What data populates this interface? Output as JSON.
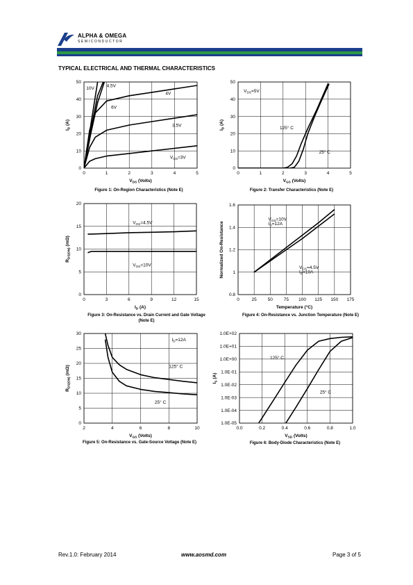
{
  "header": {
    "brand_line1": "ALPHA & OMEGA",
    "brand_line2": "SEMICONDUCTOR",
    "band_colors": [
      "#1b3f8b",
      "#2d9a46",
      "#1b3f8b"
    ]
  },
  "section_title": "TYPICAL ELECTRICAL AND THERMAL CHARACTERISTICS",
  "captions": {
    "fig1": "Figure 1: On-Region Characteristics (Note E)",
    "fig2": "Figure 2: Transfer Characteristics (Note E)",
    "fig3": "Figure 3: On-Resistance vs. Drain Current and Gate Voltage (Note E)",
    "fig4": "Figure 4: On-Resistance vs. Junction Temperature (Note E)",
    "fig5": "Figure 5: On-Resistance vs. Gate-Source Voltage (Note E)",
    "fig6": "Figure 6: Body-Diode Characteristics (Note E)"
  },
  "footer": {
    "left": "Rev.1.0: February 2014",
    "center": "www.aosmd.com",
    "right": "Page 3 of 5"
  },
  "chart_data": [
    {
      "id": "fig1",
      "type": "line",
      "xlabel": "V_DS (Volts)",
      "ylabel": "I_D (A)",
      "xlim": [
        0,
        5
      ],
      "ylim": [
        0,
        50
      ],
      "xticks": [
        0,
        1,
        2,
        3,
        4,
        5
      ],
      "yticks": [
        0,
        10,
        20,
        30,
        40,
        50
      ],
      "series": [
        {
          "name": "10V",
          "x": [
            0,
            0.3,
            0.6
          ],
          "y": [
            0,
            25,
            50
          ]
        },
        {
          "name": "4.5V",
          "x": [
            0,
            0.3,
            0.6,
            0.9
          ],
          "y": [
            0,
            20,
            38,
            50
          ]
        },
        {
          "name": "6V",
          "x": [
            0,
            0.3,
            0.6,
            0.85
          ],
          "y": [
            0,
            22,
            42,
            50
          ]
        },
        {
          "name": "4V",
          "x": [
            0,
            0.25,
            0.5,
            1,
            2,
            3,
            4,
            5
          ],
          "y": [
            0,
            22,
            32,
            39,
            42,
            44,
            46,
            48
          ]
        },
        {
          "name": "3.5V",
          "x": [
            0,
            0.25,
            0.5,
            1,
            2,
            3,
            4,
            5
          ],
          "y": [
            0,
            12,
            18,
            22,
            25,
            27,
            29,
            31
          ]
        },
        {
          "name": "V_GS=3V",
          "x": [
            0,
            0.25,
            0.5,
            1,
            2,
            3,
            4,
            5
          ],
          "y": [
            0,
            4,
            5.5,
            7,
            8.5,
            10,
            11.5,
            13
          ]
        }
      ],
      "annotations": [
        {
          "text": "10V",
          "x": 0.1,
          "y": 45.5
        },
        {
          "text": "4.5V",
          "x": 1.0,
          "y": 47
        },
        {
          "text": "4V",
          "x": 3.6,
          "y": 42.5
        },
        {
          "text": "6V",
          "x": 1.2,
          "y": 34.5
        },
        {
          "text": "3.5V",
          "x": 3.9,
          "y": 24
        },
        {
          "text": "V_GS=3V",
          "x": 3.8,
          "y": 5.5
        }
      ]
    },
    {
      "id": "fig2",
      "type": "line",
      "xlabel": "V_GS (Volts)",
      "ylabel": "I_D (A)",
      "xlim": [
        0,
        5
      ],
      "ylim": [
        0,
        50
      ],
      "xticks": [
        0,
        1,
        2,
        3,
        4,
        5
      ],
      "yticks": [
        0,
        10,
        20,
        30,
        40,
        50
      ],
      "series": [
        {
          "name": "125°C",
          "x": [
            0,
            2.0,
            2.2,
            2.4,
            2.6,
            2.8,
            3.1,
            3.5,
            4.0
          ],
          "y": [
            0,
            0,
            0.5,
            2.5,
            7,
            14,
            23,
            34,
            49
          ]
        },
        {
          "name": "25°C",
          "x": [
            0,
            2.3,
            2.5,
            2.7,
            2.9,
            3.1,
            3.4,
            3.7,
            4.05
          ],
          "y": [
            0,
            0,
            0.5,
            4,
            11,
            20,
            30,
            39,
            49
          ]
        }
      ],
      "annotations": [
        {
          "text": "V_DS=5V",
          "x": 0.25,
          "y": 44
        },
        {
          "text": "125° C",
          "x": 1.85,
          "y": 22.5
        },
        {
          "text": "25° C",
          "x": 3.6,
          "y": 8.5
        }
      ]
    },
    {
      "id": "fig3",
      "type": "line",
      "xlabel": "I_D (A)",
      "ylabel": "R_DS(ON) (mΩ)",
      "xlim": [
        0,
        15
      ],
      "ylim": [
        0,
        20
      ],
      "xticks": [
        0,
        3,
        6,
        9,
        12,
        15
      ],
      "yticks": [
        0,
        5,
        10,
        15,
        20
      ],
      "series": [
        {
          "name": "V_GS=4.5V",
          "x": [
            0.5,
            1,
            3,
            6,
            9,
            12,
            15
          ],
          "y": [
            13.3,
            13.3,
            13.4,
            13.6,
            13.7,
            13.8,
            14.0
          ]
        },
        {
          "name": "V_GS=10V",
          "x": [
            0.5,
            1,
            3,
            6,
            9,
            12,
            15
          ],
          "y": [
            9.2,
            9.5,
            9.5,
            9.5,
            9.5,
            9.5,
            9.5
          ]
        }
      ],
      "annotations": [
        {
          "text": "V_GS=4.5V",
          "x": 6.5,
          "y": 15.5
        },
        {
          "text": "V_GS=10V",
          "x": 6.5,
          "y": 6.2
        }
      ]
    },
    {
      "id": "fig4",
      "type": "line",
      "xlabel": "Temperature (°C)",
      "ylabel": "Normalized On-Resistance",
      "xlim": [
        0,
        175
      ],
      "ylim": [
        0.8,
        1.6
      ],
      "xticks": [
        0,
        25,
        50,
        75,
        100,
        125,
        150,
        175
      ],
      "yticks": [
        0.8,
        1.0,
        1.2,
        1.4,
        1.6
      ],
      "series": [
        {
          "name": "V_GS=10V, I_D=12A",
          "x": [
            25,
            50,
            75,
            100,
            125,
            150
          ],
          "y": [
            1.0,
            1.11,
            1.22,
            1.33,
            1.44,
            1.56
          ]
        },
        {
          "name": "V_GS=4.5V, I_D=10A",
          "x": [
            25,
            50,
            75,
            100,
            125,
            150
          ],
          "y": [
            1.0,
            1.1,
            1.2,
            1.3,
            1.41,
            1.52
          ]
        }
      ],
      "annotations": [
        {
          "text": "V_GS=10V",
          "x": 47,
          "y": 1.46
        },
        {
          "text": "I_D=12A",
          "x": 47,
          "y": 1.42
        },
        {
          "text": "V_GS=4.5V",
          "x": 95,
          "y": 1.03
        },
        {
          "text": "I_D=10A",
          "x": 95,
          "y": 0.99
        }
      ]
    },
    {
      "id": "fig5",
      "type": "line",
      "xlabel": "V_GS (Volts)",
      "ylabel": "R_DS(ON) (mΩ)",
      "xlim": [
        2,
        10
      ],
      "ylim": [
        0,
        30
      ],
      "xticks": [
        2,
        4,
        6,
        8,
        10
      ],
      "yticks": [
        0,
        5,
        10,
        15,
        20,
        25,
        30
      ],
      "series": [
        {
          "name": "125°C",
          "x": [
            3.5,
            3.7,
            4,
            4.5,
            5,
            6,
            7,
            8,
            9,
            10
          ],
          "y": [
            30,
            26,
            22,
            19.5,
            18,
            16.2,
            15.2,
            14.6,
            14.0,
            13.5
          ]
        },
        {
          "name": "25°C",
          "x": [
            3.5,
            3.7,
            4,
            4.5,
            5,
            6,
            7,
            8,
            9,
            10
          ],
          "y": [
            28,
            22,
            17,
            14,
            12.5,
            11.3,
            10.6,
            10.2,
            9.8,
            9.5
          ]
        }
      ],
      "annotations": [
        {
          "text": "I_D=12A",
          "x": 8.2,
          "y": 27.5
        },
        {
          "text": "125° C",
          "x": 8.0,
          "y": 18.5
        },
        {
          "text": "25° C",
          "x": 7.0,
          "y": 6.5
        }
      ]
    },
    {
      "id": "fig6",
      "type": "line",
      "yscale": "log",
      "xlabel": "V_SD (Volts)",
      "ylabel": "I_S (A)",
      "xlim": [
        0,
        1.0
      ],
      "ylim": [
        1e-05,
        100
      ],
      "xticks": [
        0.0,
        0.2,
        0.4,
        0.6,
        0.8,
        1.0
      ],
      "xtick_labels": [
        "0.0",
        "0.2",
        "0.4",
        "0.6",
        "0.8",
        "1.0"
      ],
      "yticks": [
        1e-05,
        0.0001,
        0.001,
        0.01,
        0.1,
        1,
        10,
        100
      ],
      "ytick_labels": [
        "1.0E-05",
        "1.0E-04",
        "1.0E-03",
        "1.0E-02",
        "1.0E-01",
        "1.0E+00",
        "1.0E+01",
        "1.0E+02"
      ],
      "series": [
        {
          "name": "125°C",
          "x": [
            0.17,
            0.3,
            0.4,
            0.5,
            0.6,
            0.7,
            0.8,
            0.9,
            1.0
          ],
          "y": [
            1e-05,
            0.0006,
            0.015,
            0.35,
            5,
            25,
            40,
            50,
            55
          ]
        },
        {
          "name": "25°C",
          "x": [
            0.41,
            0.5,
            0.6,
            0.7,
            0.8,
            0.9,
            1.0
          ],
          "y": [
            1e-05,
            0.00018,
            0.005,
            0.15,
            4,
            25,
            48
          ]
        }
      ],
      "annotations": [
        {
          "text": "125° C",
          "x": 0.27,
          "y": 1.0
        },
        {
          "text": "25° C",
          "x": 0.71,
          "y": 0.002
        }
      ]
    }
  ]
}
